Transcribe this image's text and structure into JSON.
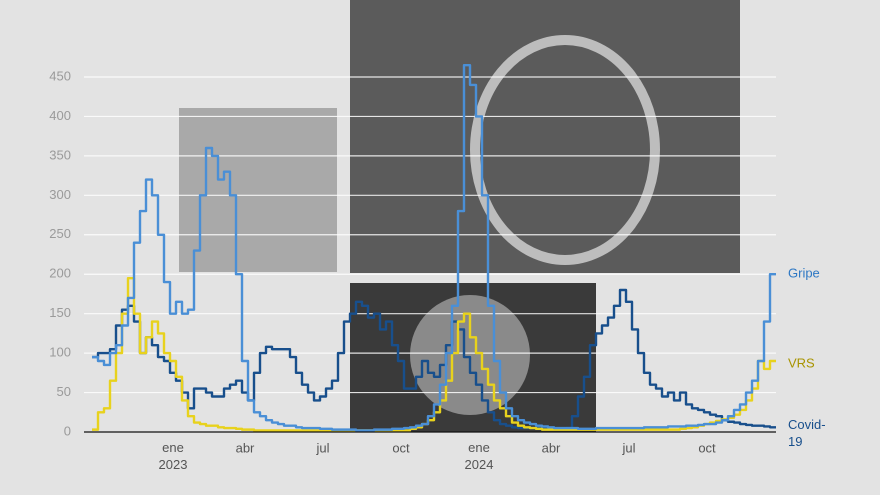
{
  "chart_data": {
    "type": "step",
    "categories": [
      null,
      null,
      null,
      null,
      null,
      null,
      null,
      null,
      null,
      null,
      null,
      null,
      null,
      "ene 2023",
      null,
      null,
      null,
      null,
      null,
      null,
      null,
      null,
      null,
      null,
      null,
      "abr",
      null,
      null,
      null,
      null,
      null,
      null,
      null,
      null,
      null,
      null,
      null,
      null,
      "jul",
      null,
      null,
      null,
      null,
      null,
      null,
      null,
      null,
      null,
      null,
      null,
      null,
      "oct",
      null,
      null,
      null,
      null,
      null,
      null,
      null,
      null,
      null,
      null,
      null,
      null,
      "ene 2024",
      null,
      null,
      null,
      null,
      null,
      null,
      null,
      null,
      null,
      null,
      null,
      "abr",
      null,
      null,
      null,
      null,
      null,
      null,
      null,
      null,
      null,
      null,
      null,
      null,
      "jul",
      null,
      null,
      null,
      null,
      null,
      null,
      null,
      null,
      null,
      null,
      null,
      null,
      "oct",
      null,
      null,
      null,
      null,
      null,
      null,
      null,
      null,
      null,
      null,
      null
    ],
    "series": [
      {
        "name": "Gripe",
        "color": "#4a8fd6",
        "values": [
          95,
          90,
          85,
          100,
          110,
          135,
          170,
          240,
          280,
          320,
          300,
          250,
          190,
          150,
          165,
          150,
          155,
          230,
          300,
          360,
          350,
          320,
          330,
          300,
          200,
          90,
          40,
          25,
          20,
          15,
          12,
          10,
          8,
          8,
          6,
          5,
          5,
          5,
          4,
          4,
          3,
          3,
          3,
          3,
          2,
          2,
          2,
          3,
          3,
          3,
          4,
          4,
          5,
          6,
          8,
          10,
          20,
          35,
          60,
          100,
          160,
          280,
          465,
          440,
          400,
          300,
          160,
          90,
          50,
          30,
          20,
          15,
          12,
          10,
          8,
          7,
          6,
          5,
          5,
          5,
          5,
          4,
          4,
          4,
          5,
          5,
          5,
          5,
          5,
          5,
          5,
          5,
          6,
          6,
          6,
          6,
          7,
          7,
          7,
          8,
          8,
          9,
          10,
          10,
          12,
          15,
          20,
          28,
          35,
          50,
          65,
          90,
          140,
          200
        ]
      },
      {
        "name": "VRS",
        "color": "#e8d21d",
        "values": [
          3,
          25,
          30,
          65,
          100,
          150,
          195,
          150,
          100,
          120,
          140,
          125,
          100,
          90,
          70,
          40,
          20,
          12,
          10,
          8,
          8,
          6,
          5,
          5,
          4,
          3,
          3,
          2,
          2,
          2,
          2,
          2,
          2,
          2,
          2,
          2,
          2,
          2,
          2,
          2,
          2,
          2,
          2,
          2,
          2,
          2,
          2,
          2,
          2,
          2,
          2,
          2,
          2,
          4,
          6,
          10,
          15,
          25,
          40,
          65,
          100,
          140,
          150,
          120,
          100,
          80,
          60,
          40,
          30,
          20,
          12,
          8,
          6,
          5,
          4,
          3,
          3,
          3,
          3,
          3,
          3,
          3,
          3,
          3,
          3,
          3,
          3,
          3,
          3,
          3,
          3,
          3,
          3,
          3,
          3,
          3,
          3,
          3,
          4,
          5,
          6,
          8,
          10,
          12,
          14,
          16,
          18,
          22,
          28,
          40,
          55,
          90,
          80,
          90
        ]
      },
      {
        "name": "Covid-19",
        "color": "#184f8c",
        "values": [
          95,
          100,
          100,
          105,
          135,
          155,
          160,
          140,
          100,
          120,
          110,
          95,
          90,
          75,
          65,
          50,
          30,
          55,
          55,
          50,
          45,
          45,
          55,
          60,
          65,
          50,
          40,
          75,
          100,
          108,
          105,
          105,
          105,
          95,
          75,
          60,
          50,
          40,
          45,
          55,
          65,
          100,
          140,
          150,
          165,
          160,
          145,
          150,
          130,
          140,
          110,
          90,
          55,
          55,
          70,
          90,
          75,
          70,
          85,
          110,
          140,
          130,
          95,
          75,
          60,
          40,
          25,
          15,
          10,
          8,
          6,
          5,
          5,
          5,
          5,
          5,
          4,
          4,
          4,
          5,
          20,
          45,
          70,
          110,
          125,
          135,
          145,
          160,
          180,
          165,
          130,
          100,
          75,
          60,
          55,
          45,
          50,
          40,
          50,
          35,
          30,
          28,
          25,
          22,
          20,
          15,
          13,
          12,
          10,
          9,
          8,
          8,
          7,
          6
        ]
      }
    ],
    "label_colors": [
      "#2e78c4",
      "#a89400",
      "#184f8c"
    ],
    "ylim": [
      0,
      450
    ],
    "yticks": [
      0,
      50,
      100,
      150,
      200,
      250,
      300,
      350,
      400,
      450
    ],
    "grid": true
  }
}
